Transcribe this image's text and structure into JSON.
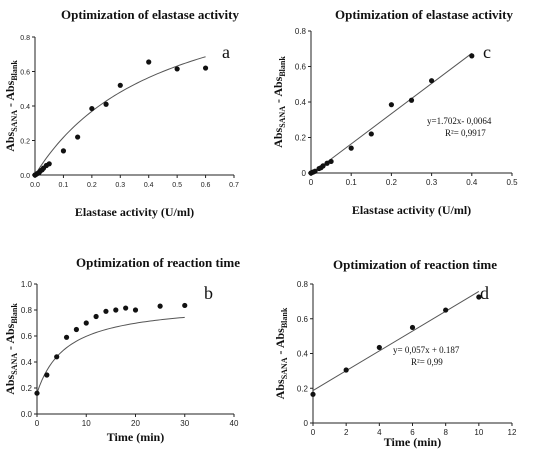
{
  "chart_data": [
    {
      "id": "a",
      "type": "scatter",
      "panel_label": "a",
      "title": "Optimization of elastase activity",
      "xlabel": "Elastase activity (U/ml)",
      "ylabel_main": "Abs",
      "ylabel_sub1": "SANA",
      "ylabel_mid": " - Abs",
      "ylabel_sub2": "Blank",
      "xlim": [
        0,
        0.7
      ],
      "ylim": [
        0,
        0.8
      ],
      "xticks": [
        "0.0",
        "0.1",
        "0.2",
        "0.3",
        "0.4",
        "0.5",
        "0.6",
        "0.7"
      ],
      "yticks": [
        "0.0",
        "0.2",
        "0.4",
        "0.6",
        "0.8"
      ],
      "points": [
        {
          "x": 0.0,
          "y": 0.0
        },
        {
          "x": 0.005,
          "y": 0.005
        },
        {
          "x": 0.01,
          "y": 0.01
        },
        {
          "x": 0.015,
          "y": 0.015
        },
        {
          "x": 0.02,
          "y": 0.025
        },
        {
          "x": 0.025,
          "y": 0.03
        },
        {
          "x": 0.03,
          "y": 0.04
        },
        {
          "x": 0.04,
          "y": 0.055
        },
        {
          "x": 0.05,
          "y": 0.065
        },
        {
          "x": 0.1,
          "y": 0.14
        },
        {
          "x": 0.15,
          "y": 0.22
        },
        {
          "x": 0.2,
          "y": 0.385
        },
        {
          "x": 0.25,
          "y": 0.41
        },
        {
          "x": 0.3,
          "y": 0.52
        },
        {
          "x": 0.4,
          "y": 0.655
        },
        {
          "x": 0.5,
          "y": 0.615
        },
        {
          "x": 0.6,
          "y": 0.62
        }
      ],
      "fit": {
        "kind": "hyperbola",
        "vmax": 1.2,
        "k": 0.45,
        "x_end": 0.6
      }
    },
    {
      "id": "c",
      "type": "scatter",
      "panel_label": "c",
      "title": "Optimization of elastase activity",
      "xlabel": "Elastase activity (U/ml)",
      "ylabel_main": "Abs",
      "ylabel_sub1": "SANA",
      "ylabel_mid": " - Abs",
      "ylabel_sub2": "Blank",
      "xlim": [
        0,
        0.5
      ],
      "ylim": [
        0,
        0.8
      ],
      "xticks": [
        "0",
        "0.1",
        "0.2",
        "0.3",
        "0.4",
        "0.5"
      ],
      "yticks": [
        "0",
        "0.2",
        "0.4",
        "0.6",
        "0.8"
      ],
      "equation": "y=1.702x- 0,0064",
      "r2": "R²= 0,9917",
      "points": [
        {
          "x": 0.0,
          "y": 0.0
        },
        {
          "x": 0.005,
          "y": 0.005
        },
        {
          "x": 0.01,
          "y": 0.01
        },
        {
          "x": 0.02,
          "y": 0.025
        },
        {
          "x": 0.025,
          "y": 0.03
        },
        {
          "x": 0.03,
          "y": 0.04
        },
        {
          "x": 0.04,
          "y": 0.055
        },
        {
          "x": 0.05,
          "y": 0.065
        },
        {
          "x": 0.1,
          "y": 0.14
        },
        {
          "x": 0.15,
          "y": 0.22
        },
        {
          "x": 0.2,
          "y": 0.385
        },
        {
          "x": 0.25,
          "y": 0.41
        },
        {
          "x": 0.3,
          "y": 0.52
        },
        {
          "x": 0.4,
          "y": 0.66
        }
      ],
      "fit": {
        "kind": "linear",
        "slope": 1.702,
        "intercept": -0.0064,
        "x_start": 0.0,
        "x_end": 0.4
      }
    },
    {
      "id": "b",
      "type": "scatter",
      "panel_label": "b",
      "title": "Optimization of reaction time",
      "xlabel": "Time (min)",
      "ylabel_main": "Abs",
      "ylabel_sub1": "SANA",
      "ylabel_mid": " - Abs",
      "ylabel_sub2": "Blank",
      "xlim": [
        0,
        40
      ],
      "ylim": [
        0,
        1.0
      ],
      "xticks": [
        "0",
        "10",
        "20",
        "30",
        "40"
      ],
      "yticks": [
        "0.0",
        "0.2",
        "0.4",
        "0.6",
        "0.8",
        "1.0"
      ],
      "points": [
        {
          "x": 0,
          "y": 0.16
        },
        {
          "x": 2,
          "y": 0.3
        },
        {
          "x": 4,
          "y": 0.44
        },
        {
          "x": 6,
          "y": 0.59
        },
        {
          "x": 8,
          "y": 0.65
        },
        {
          "x": 10,
          "y": 0.7
        },
        {
          "x": 12,
          "y": 0.75
        },
        {
          "x": 14,
          "y": 0.79
        },
        {
          "x": 16,
          "y": 0.8
        },
        {
          "x": 18,
          "y": 0.815
        },
        {
          "x": 20,
          "y": 0.8
        },
        {
          "x": 25,
          "y": 0.83
        },
        {
          "x": 30,
          "y": 0.835
        }
      ],
      "fit": {
        "kind": "hyperbola_offset",
        "y0": 0.16,
        "vmax": 0.86,
        "k": 6.0,
        "x_end": 30
      }
    },
    {
      "id": "d",
      "type": "scatter",
      "panel_label": "d",
      "title": "Optimization of reaction time",
      "xlabel": "Time (min)",
      "ylabel_main": "Abs",
      "ylabel_sub1": "SANA",
      "ylabel_mid": " - Abs",
      "ylabel_sub2": "Blank",
      "xlim": [
        0,
        12
      ],
      "ylim": [
        0,
        0.8
      ],
      "xticks": [
        "0",
        "2",
        "4",
        "6",
        "8",
        "10",
        "12"
      ],
      "yticks": [
        "0",
        "0.2",
        "0.4",
        "0.6",
        "0.8"
      ],
      "equation": "y= 0,057x + 0.187",
      "r2": "R²= 0,99",
      "points": [
        {
          "x": 0,
          "y": 0.165
        },
        {
          "x": 2,
          "y": 0.305
        },
        {
          "x": 4,
          "y": 0.435
        },
        {
          "x": 6,
          "y": 0.55
        },
        {
          "x": 8,
          "y": 0.65
        },
        {
          "x": 10,
          "y": 0.725
        }
      ],
      "fit": {
        "kind": "linear",
        "slope": 0.057,
        "intercept": 0.187,
        "x_start": 0,
        "x_end": 10
      }
    }
  ]
}
